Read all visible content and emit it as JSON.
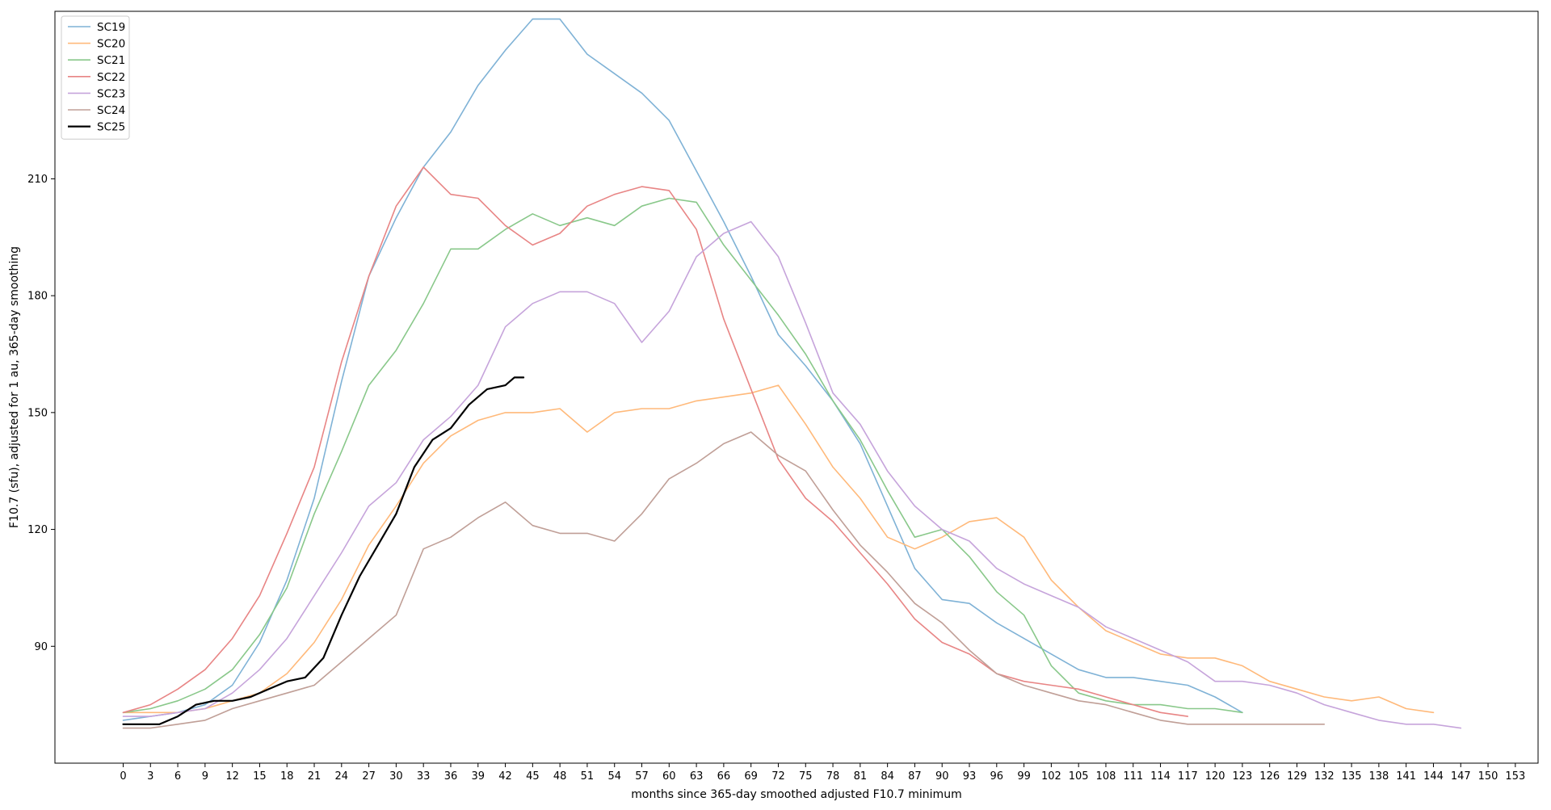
{
  "chart_data": {
    "type": "line",
    "title": "",
    "xlabel": "months since 365-day smoothed adjusted F10.7 minimum",
    "ylabel": "F10.7 (sfu), adjusted for 1 au, 365-day smoothing",
    "xlim": [
      -7.5,
      155.5
    ],
    "ylim": [
      60,
      253
    ],
    "xticks": [
      0,
      3,
      6,
      9,
      12,
      15,
      18,
      21,
      24,
      27,
      30,
      33,
      36,
      39,
      42,
      45,
      48,
      51,
      54,
      57,
      60,
      63,
      66,
      69,
      72,
      75,
      78,
      81,
      84,
      87,
      90,
      93,
      96,
      99,
      102,
      105,
      108,
      111,
      114,
      117,
      120,
      123,
      126,
      129,
      132,
      135,
      138,
      141,
      144,
      147,
      150,
      153
    ],
    "yticks": [
      90,
      120,
      150,
      180,
      210
    ],
    "grid": false,
    "legend_position": "top-left",
    "series": [
      {
        "name": "SC19",
        "color": "#7fb2d6",
        "width": 1.6,
        "x": [
          0,
          3,
          6,
          9,
          12,
          15,
          18,
          21,
          24,
          27,
          30,
          33,
          36,
          39,
          42,
          45,
          48,
          51,
          54,
          57,
          60,
          63,
          66,
          69,
          72,
          75,
          78,
          81,
          84,
          87,
          90,
          93,
          96,
          99,
          102,
          105,
          108,
          111,
          114,
          117,
          120,
          123
        ],
        "y": [
          71,
          72,
          73,
          75,
          80,
          91,
          107,
          128,
          158,
          185,
          200,
          213,
          222,
          234,
          243,
          251,
          251,
          242,
          237,
          232,
          225,
          212,
          199,
          185,
          170,
          162,
          153,
          142,
          126,
          110,
          102,
          101,
          96,
          92,
          88,
          84,
          82,
          82,
          81,
          80,
          77,
          73
        ]
      },
      {
        "name": "SC20",
        "color": "#ffb97a",
        "width": 1.6,
        "x": [
          0,
          3,
          6,
          9,
          12,
          15,
          18,
          21,
          24,
          27,
          30,
          33,
          36,
          39,
          42,
          45,
          48,
          51,
          54,
          57,
          60,
          63,
          66,
          69,
          72,
          75,
          78,
          81,
          84,
          87,
          90,
          93,
          96,
          99,
          102,
          105,
          108,
          111,
          114,
          117,
          120,
          123,
          126,
          129,
          132,
          135,
          138,
          141,
          144
        ],
        "y": [
          73,
          73,
          73,
          74,
          76,
          78,
          83,
          91,
          102,
          116,
          126,
          137,
          144,
          148,
          150,
          150,
          151,
          145,
          150,
          151,
          151,
          153,
          154,
          155,
          157,
          147,
          136,
          128,
          118,
          115,
          118,
          122,
          123,
          118,
          107,
          100,
          94,
          91,
          88,
          87,
          87,
          85,
          81,
          79,
          77,
          76,
          77,
          74,
          73
        ]
      },
      {
        "name": "SC21",
        "color": "#89c88a",
        "width": 1.6,
        "x": [
          0,
          3,
          6,
          9,
          12,
          15,
          18,
          21,
          24,
          27,
          30,
          33,
          36,
          39,
          42,
          45,
          48,
          51,
          54,
          57,
          60,
          63,
          66,
          69,
          72,
          75,
          78,
          81,
          84,
          87,
          90,
          93,
          96,
          99,
          102,
          105,
          108,
          111,
          114,
          117,
          120,
          123
        ],
        "y": [
          73,
          74,
          76,
          79,
          84,
          93,
          105,
          124,
          140,
          157,
          166,
          178,
          192,
          192,
          197,
          201,
          198,
          200,
          198,
          203,
          205,
          204,
          193,
          184,
          175,
          165,
          153,
          143,
          130,
          118,
          120,
          113,
          104,
          98,
          85,
          78,
          76,
          75,
          75,
          74,
          74,
          73
        ]
      },
      {
        "name": "SC22",
        "color": "#e88585",
        "width": 1.6,
        "x": [
          0,
          3,
          6,
          9,
          12,
          15,
          18,
          21,
          24,
          27,
          30,
          33,
          36,
          39,
          42,
          45,
          48,
          51,
          54,
          57,
          60,
          63,
          66,
          69,
          72,
          75,
          78,
          81,
          84,
          87,
          90,
          93,
          96,
          99,
          102,
          105,
          108,
          111,
          114,
          117
        ],
        "y": [
          73,
          75,
          79,
          84,
          92,
          103,
          119,
          136,
          163,
          185,
          203,
          213,
          206,
          205,
          198,
          193,
          196,
          203,
          206,
          208,
          207,
          197,
          174,
          156,
          138,
          128,
          122,
          114,
          106,
          97,
          91,
          88,
          83,
          81,
          80,
          79,
          77,
          75,
          73,
          72
        ]
      },
      {
        "name": "SC23",
        "color": "#c6a4db",
        "width": 1.6,
        "x": [
          0,
          3,
          6,
          9,
          12,
          15,
          18,
          21,
          24,
          27,
          30,
          33,
          36,
          39,
          42,
          45,
          48,
          51,
          54,
          57,
          60,
          63,
          66,
          69,
          72,
          75,
          78,
          81,
          84,
          87,
          90,
          93,
          96,
          99,
          102,
          105,
          108,
          111,
          114,
          117,
          120,
          123,
          126,
          129,
          132,
          135,
          138,
          141,
          144,
          147
        ],
        "y": [
          72,
          72,
          73,
          74,
          78,
          84,
          92,
          103,
          114,
          126,
          132,
          143,
          149,
          157,
          172,
          178,
          181,
          181,
          178,
          168,
          176,
          190,
          196,
          199,
          190,
          173,
          155,
          147,
          135,
          126,
          120,
          117,
          110,
          106,
          103,
          100,
          95,
          92,
          89,
          86,
          81,
          81,
          80,
          78,
          75,
          73,
          71,
          70,
          70,
          69
        ]
      },
      {
        "name": "SC24",
        "color": "#c09f97",
        "width": 1.6,
        "x": [
          0,
          3,
          6,
          9,
          12,
          15,
          18,
          21,
          24,
          27,
          30,
          33,
          36,
          39,
          42,
          45,
          48,
          51,
          54,
          57,
          60,
          63,
          66,
          69,
          72,
          75,
          78,
          81,
          84,
          87,
          90,
          93,
          96,
          99,
          102,
          105,
          108,
          111,
          114,
          117,
          120,
          123,
          126,
          129,
          132
        ],
        "y": [
          69,
          69,
          70,
          71,
          74,
          76,
          78,
          80,
          86,
          92,
          98,
          115,
          118,
          123,
          127,
          121,
          119,
          119,
          117,
          124,
          133,
          137,
          142,
          145,
          139,
          135,
          125,
          116,
          109,
          101,
          96,
          89,
          83,
          80,
          78,
          76,
          75,
          73,
          71,
          70,
          70,
          70,
          70,
          70,
          70
        ]
      },
      {
        "name": "SC25",
        "color": "#000000",
        "width": 2.2,
        "x": [
          0,
          2,
          4,
          6,
          8,
          10,
          12,
          14,
          16,
          18,
          20,
          22,
          24,
          26,
          28,
          30,
          32,
          34,
          36,
          38,
          40,
          42,
          43,
          44
        ],
        "y": [
          70,
          70,
          70,
          72,
          75,
          76,
          76,
          77,
          79,
          81,
          82,
          87,
          98,
          108,
          116,
          124,
          136,
          143,
          146,
          152,
          156,
          157,
          159,
          159
        ]
      }
    ]
  }
}
